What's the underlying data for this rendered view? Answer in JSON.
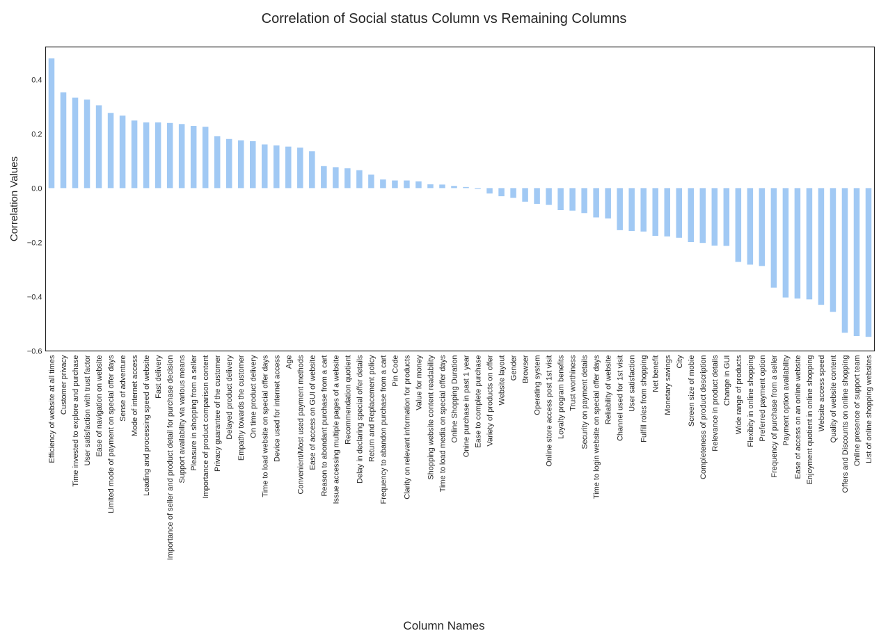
{
  "chart_data": {
    "type": "bar",
    "title": "Correlation of Social status Column vs Remaining Columns",
    "xlabel": "Column Names",
    "ylabel": "Correlation Values",
    "ylim": [
      -0.6,
      0.52
    ],
    "yticks": [
      -0.6,
      -0.4,
      -0.2,
      0.0,
      0.2,
      0.4
    ],
    "ytick_labels": [
      "−0.6",
      "−0.4",
      "−0.2",
      "0.0",
      "0.2",
      "0.4"
    ],
    "grid": false,
    "bar_color": "#a1c9f4",
    "categories": [
      "Efficiency of website at all times",
      "Customer privacy",
      "Time invested to explore and purchase",
      "User satisfaction with trust factor",
      "Ease of navigation on website",
      "Limited mode of payment on special offer days",
      "Sense of adventure",
      "Mode of internet access",
      "Loading and processing speed of website",
      "Fast delivery",
      "Importance of seller and product detail for purchase decision",
      "Support availability via various means",
      "Pleasure in shopping from a seller",
      "Importance of product comparison content",
      "Privacy guarantee of the customer",
      "Delayed product delivery",
      "Empathy towards the customer",
      "On time product delivery",
      "Time to load website on special offer days",
      "Device used for internet access",
      "Age",
      "Convenient/Most used payment methods",
      "Ease of access on GUI of website",
      "Reason to abondant purchase from a cart",
      "Issue accessing multiple pages of a website",
      "Recommendation quotient",
      "Delay in declaring special offer details",
      "Return and Replacement policy",
      "Frequency to abandon purchase from a cart",
      "Pin Code",
      "Clarity on relevant information for products",
      "Value for money",
      "Shopping website content readability",
      "Time to load media on special offer days",
      "Online Shopping Duration",
      "Onine purchase in past 1 year",
      "Ease to complete purchase",
      "Variety of products on offer",
      "Website layout",
      "Gender",
      "Browser",
      "Operating system",
      "Online store access post 1st visit",
      "Loyalty program benefits",
      "Trust worthiness",
      "Security on payment details",
      "Time to login website on special offer days",
      "Reliability of website",
      "Channel used for 1st visit",
      "User satisfaction",
      "Fulfill roles from shopping",
      "Net benefit",
      "Monetary savings",
      "City",
      "Screen size of mobie",
      "Completeness of product description",
      "Relevance in product details",
      "Change in GUI",
      "Wide range of products",
      "Flexibity in online shopping",
      "Preferred payment option",
      "Frequency of purchase from a seller",
      "Payment option availability",
      "Ease of access on an online website",
      "Enjoyment quotient in online shopping",
      "Website access speed",
      "Quality of website content",
      "Offers and Discounts on online shopping",
      "Online presence of support team",
      "List of online shopping websites"
    ],
    "values": [
      0.478,
      0.353,
      0.333,
      0.326,
      0.305,
      0.277,
      0.267,
      0.249,
      0.242,
      0.242,
      0.24,
      0.236,
      0.229,
      0.226,
      0.191,
      0.181,
      0.176,
      0.173,
      0.161,
      0.157,
      0.153,
      0.149,
      0.136,
      0.081,
      0.077,
      0.073,
      0.066,
      0.05,
      0.032,
      0.028,
      0.028,
      0.025,
      0.014,
      0.013,
      0.008,
      0.004,
      -0.003,
      -0.02,
      -0.03,
      -0.036,
      -0.05,
      -0.058,
      -0.062,
      -0.081,
      -0.083,
      -0.092,
      -0.108,
      -0.112,
      -0.155,
      -0.158,
      -0.16,
      -0.176,
      -0.178,
      -0.183,
      -0.199,
      -0.202,
      -0.212,
      -0.213,
      -0.272,
      -0.282,
      -0.287,
      -0.367,
      -0.403,
      -0.407,
      -0.41,
      -0.43,
      -0.456,
      -0.533,
      -0.545,
      -0.548
    ]
  }
}
